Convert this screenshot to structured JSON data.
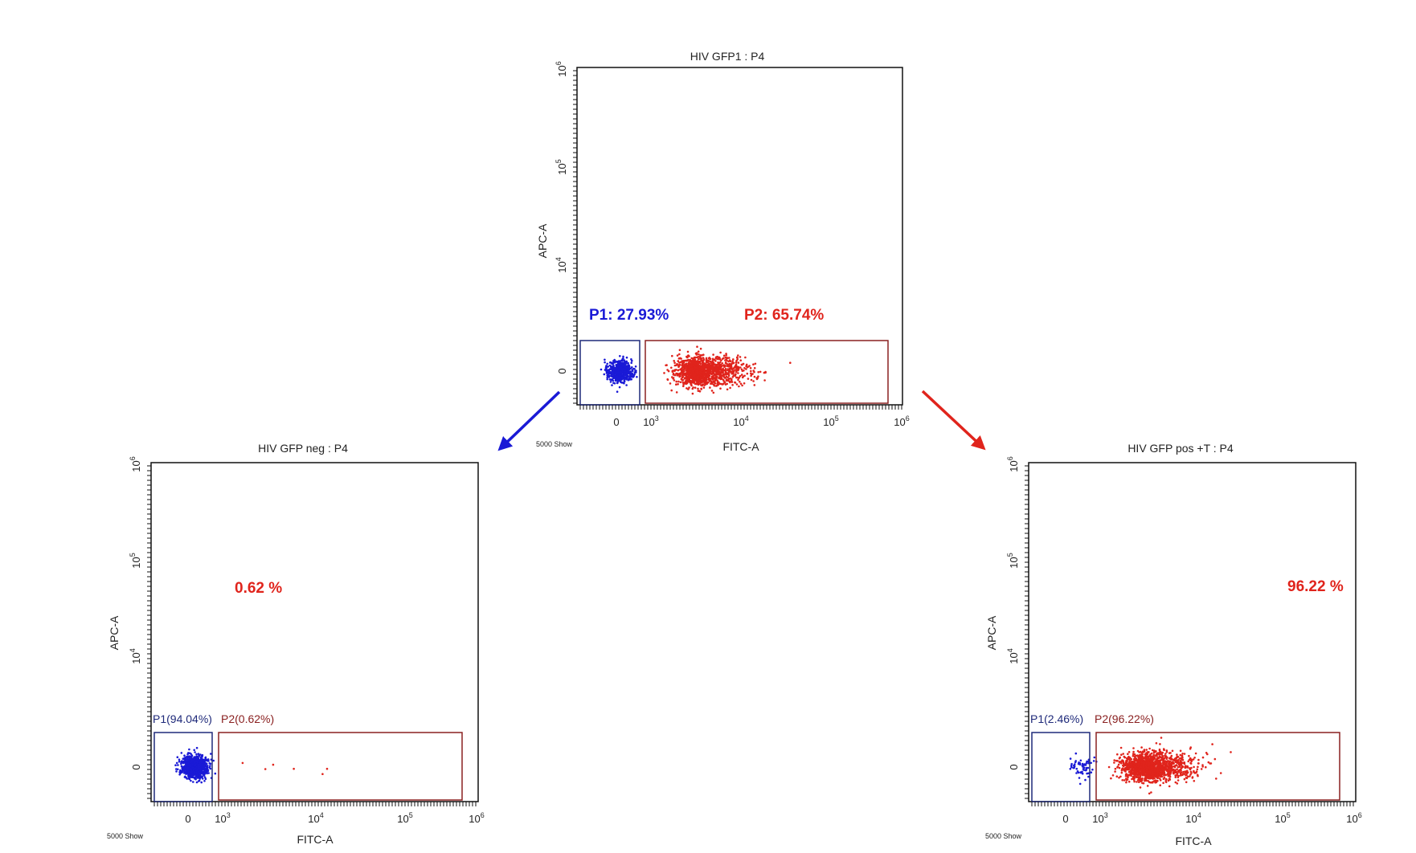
{
  "colors": {
    "p1": "#1a1ad6",
    "p2": "#e0241c",
    "gate_p1": "#1f2a7a",
    "gate_p2": "#8a2020",
    "axis": "#111111"
  },
  "chart_data": [
    {
      "type": "scatter",
      "id": "top",
      "title": "HIV GFP1 : P4",
      "xlabel": "FITC-A",
      "ylabel": "APC-A",
      "show_label": "5000 Show",
      "x_ticks": [
        {
          "base": "0",
          "exp": ""
        },
        {
          "base": "10",
          "exp": "3"
        },
        {
          "base": "10",
          "exp": "4"
        },
        {
          "base": "10",
          "exp": "5"
        },
        {
          "base": "10",
          "exp": "6"
        }
      ],
      "y_ticks": [
        {
          "base": "0",
          "exp": ""
        },
        {
          "base": "10",
          "exp": "4"
        },
        {
          "base": "10",
          "exp": "5"
        },
        {
          "base": "10",
          "exp": "6"
        }
      ],
      "gate_labels": [],
      "annotations": [
        {
          "text": "P1: 27.93%",
          "color": "p1"
        },
        {
          "text": "P2: 65.74%",
          "color": "p2"
        }
      ],
      "populations": [
        {
          "name": "P1",
          "percent": 27.93,
          "center_x_log": 2.55,
          "center_y": 0,
          "count": 550
        },
        {
          "name": "P2",
          "percent": 65.74,
          "center_x_log": 3.45,
          "center_y": 0,
          "count": 1300
        }
      ]
    },
    {
      "type": "scatter",
      "id": "left",
      "title": "HIV GFP neg : P4",
      "xlabel": "FITC-A",
      "ylabel": "APC-A",
      "show_label": "5000 Show",
      "x_ticks": [
        {
          "base": "0",
          "exp": ""
        },
        {
          "base": "10",
          "exp": "3"
        },
        {
          "base": "10",
          "exp": "4"
        },
        {
          "base": "10",
          "exp": "5"
        },
        {
          "base": "10",
          "exp": "6"
        }
      ],
      "y_ticks": [
        {
          "base": "0",
          "exp": ""
        },
        {
          "base": "10",
          "exp": "4"
        },
        {
          "base": "10",
          "exp": "5"
        },
        {
          "base": "10",
          "exp": "6"
        }
      ],
      "gate_labels": [
        {
          "text": "P1(94.04%)",
          "color": "gate_p1"
        },
        {
          "text": "P2(0.62%)",
          "color": "gate_p2"
        }
      ],
      "annotations": [
        {
          "text": "0.62 %",
          "color": "p2"
        }
      ],
      "populations": [
        {
          "name": "P1",
          "percent": 94.04,
          "center_x_log": 2.6,
          "center_y": 0,
          "count": 900
        },
        {
          "name": "P2",
          "percent": 0.62,
          "center_x_log": 3.2,
          "center_y": 0,
          "count": 6
        }
      ]
    },
    {
      "type": "scatter",
      "id": "right",
      "title": "HIV GFP pos +T : P4",
      "xlabel": "FITC-A",
      "ylabel": "APC-A",
      "show_label": "5000 Show",
      "x_ticks": [
        {
          "base": "0",
          "exp": ""
        },
        {
          "base": "10",
          "exp": "3"
        },
        {
          "base": "10",
          "exp": "4"
        },
        {
          "base": "10",
          "exp": "5"
        },
        {
          "base": "10",
          "exp": "6"
        }
      ],
      "y_ticks": [
        {
          "base": "0",
          "exp": ""
        },
        {
          "base": "10",
          "exp": "4"
        },
        {
          "base": "10",
          "exp": "5"
        },
        {
          "base": "10",
          "exp": "6"
        }
      ],
      "gate_labels": [
        {
          "text": "P1(2.46%)",
          "color": "gate_p1"
        },
        {
          "text": "P2(96.22%)",
          "color": "gate_p2"
        }
      ],
      "annotations": [
        {
          "text": "96.22 %",
          "color": "p2"
        }
      ],
      "populations": [
        {
          "name": "P1",
          "percent": 2.46,
          "center_x_log": 2.75,
          "center_y": 0,
          "count": 60
        },
        {
          "name": "P2",
          "percent": 96.22,
          "center_x_log": 3.4,
          "center_y": 0,
          "count": 1500
        }
      ]
    }
  ]
}
